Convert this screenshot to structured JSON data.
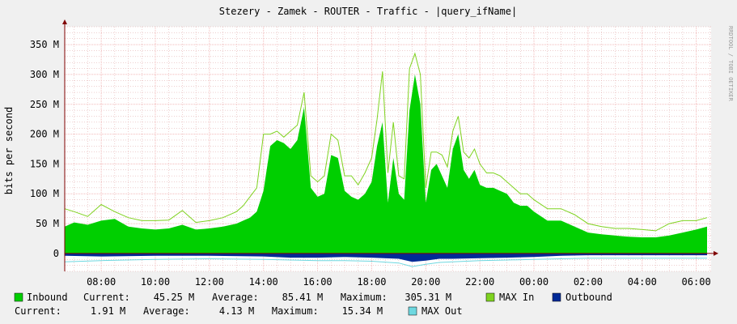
{
  "chart_data": {
    "type": "area",
    "title": "Stezery - Zamek - ROUTER - Traffic - |query_ifName|",
    "ylabel": "bits per second",
    "watermark": "RRDTOOL / TOBI OETIKER",
    "ylim": [
      -30,
      380
    ],
    "y_ticks": [
      {
        "value": 350,
        "label": "350 M"
      },
      {
        "value": 300,
        "label": "300 M"
      },
      {
        "value": 250,
        "label": "250 M"
      },
      {
        "value": 200,
        "label": "200 M"
      },
      {
        "value": 150,
        "label": "150 M"
      },
      {
        "value": 100,
        "label": "100 M"
      },
      {
        "value": 50,
        "label": "50 M"
      },
      {
        "value": 0,
        "label": "0"
      }
    ],
    "x_range": [
      6.65,
      30.55
    ],
    "x_ticks": [
      {
        "value": 8,
        "label": "08:00"
      },
      {
        "value": 10,
        "label": "10:00"
      },
      {
        "value": 12,
        "label": "12:00"
      },
      {
        "value": 14,
        "label": "14:00"
      },
      {
        "value": 16,
        "label": "16:00"
      },
      {
        "value": 18,
        "label": "18:00"
      },
      {
        "value": 20,
        "label": "20:00"
      },
      {
        "value": 22,
        "label": "22:00"
      },
      {
        "value": 24,
        "label": "00:00"
      },
      {
        "value": 26,
        "label": "02:00"
      },
      {
        "value": 28,
        "label": "04:00"
      },
      {
        "value": 30,
        "label": "06:00"
      }
    ],
    "grid": true,
    "colors": {
      "inbound": "#00cf00",
      "max_in": "#7fd320",
      "outbound": "#002a97",
      "max_out": "#6ed8e0",
      "grid_minor": "#dd9f9f",
      "grid_major": "#f3b9b9",
      "axis": "#800000",
      "plot_bg": "#ffffff",
      "frame_bg": "#f0f0f0"
    },
    "series": [
      {
        "name": "Inbound",
        "key": "inbound",
        "x": [
          6.65,
          7.0,
          7.5,
          8.0,
          8.5,
          9.0,
          9.5,
          10.0,
          10.5,
          11.0,
          11.5,
          12.0,
          12.5,
          13.0,
          13.25,
          13.5,
          13.75,
          14.0,
          14.25,
          14.5,
          14.75,
          15.0,
          15.25,
          15.5,
          15.75,
          16.0,
          16.25,
          16.5,
          16.75,
          17.0,
          17.25,
          17.5,
          17.75,
          18.0,
          18.2,
          18.4,
          18.6,
          18.8,
          19.0,
          19.2,
          19.4,
          19.6,
          19.8,
          20.0,
          20.2,
          20.4,
          20.6,
          20.8,
          21.0,
          21.2,
          21.4,
          21.6,
          21.8,
          22.0,
          22.25,
          22.5,
          22.75,
          23.0,
          23.25,
          23.5,
          23.75,
          24.0,
          24.5,
          25.0,
          25.5,
          26.0,
          26.5,
          27.0,
          27.5,
          28.0,
          28.5,
          29.0,
          29.5,
          30.0,
          30.4
        ],
        "values": [
          45,
          52,
          48,
          55,
          58,
          45,
          42,
          40,
          42,
          48,
          40,
          42,
          45,
          50,
          55,
          60,
          70,
          105,
          180,
          190,
          185,
          175,
          190,
          245,
          110,
          95,
          100,
          165,
          160,
          105,
          95,
          90,
          100,
          120,
          180,
          220,
          85,
          160,
          100,
          90,
          240,
          300,
          250,
          85,
          140,
          150,
          130,
          110,
          175,
          200,
          140,
          125,
          140,
          115,
          110,
          110,
          105,
          100,
          85,
          80,
          80,
          70,
          55,
          55,
          45,
          35,
          32,
          30,
          28,
          27,
          27,
          30,
          35,
          40,
          45
        ]
      },
      {
        "name": "MAX In",
        "key": "max_in",
        "x": [
          6.65,
          7.0,
          7.5,
          8.0,
          8.5,
          9.0,
          9.5,
          10.0,
          10.5,
          11.0,
          11.5,
          12.0,
          12.5,
          13.0,
          13.25,
          13.5,
          13.75,
          14.0,
          14.25,
          14.5,
          14.75,
          15.0,
          15.25,
          15.5,
          15.75,
          16.0,
          16.25,
          16.5,
          16.75,
          17.0,
          17.25,
          17.5,
          17.75,
          18.0,
          18.2,
          18.4,
          18.6,
          18.8,
          19.0,
          19.2,
          19.4,
          19.6,
          19.8,
          20.0,
          20.2,
          20.4,
          20.6,
          20.8,
          21.0,
          21.2,
          21.4,
          21.6,
          21.8,
          22.0,
          22.25,
          22.5,
          22.75,
          23.0,
          23.25,
          23.5,
          23.75,
          24.0,
          24.5,
          25.0,
          25.5,
          26.0,
          26.5,
          27.0,
          27.5,
          28.0,
          28.5,
          29.0,
          29.5,
          30.0,
          30.4
        ],
        "values": [
          75,
          70,
          62,
          82,
          70,
          60,
          55,
          55,
          56,
          72,
          52,
          55,
          60,
          70,
          80,
          95,
          110,
          200,
          200,
          205,
          195,
          205,
          215,
          270,
          130,
          120,
          130,
          200,
          190,
          130,
          130,
          115,
          135,
          160,
          225,
          305,
          135,
          220,
          130,
          125,
          310,
          335,
          300,
          110,
          170,
          170,
          165,
          145,
          205,
          230,
          170,
          160,
          175,
          150,
          135,
          135,
          130,
          120,
          110,
          100,
          100,
          90,
          75,
          75,
          65,
          50,
          45,
          42,
          42,
          40,
          38,
          50,
          55,
          55,
          60
        ]
      },
      {
        "name": "Outbound",
        "key": "outbound",
        "x": [
          6.65,
          8.0,
          10.0,
          12.0,
          14.0,
          15.0,
          16.0,
          17.0,
          18.0,
          19.0,
          19.5,
          20.0,
          20.5,
          21.0,
          22.0,
          23.0,
          24.0,
          25.0,
          26.0,
          28.0,
          30.4
        ],
        "values": [
          -4,
          -5,
          -4,
          -4,
          -5,
          -7,
          -7,
          -6,
          -7,
          -9,
          -14,
          -12,
          -9,
          -9,
          -8,
          -7,
          -6,
          -4,
          -3,
          -3,
          -3
        ]
      },
      {
        "name": "MAX Out",
        "key": "max_out",
        "x": [
          6.65,
          8.0,
          10.0,
          12.0,
          14.0,
          15.0,
          16.0,
          17.0,
          18.0,
          19.0,
          19.5,
          20.0,
          20.5,
          21.0,
          22.0,
          23.0,
          24.0,
          25.0,
          26.0,
          28.0,
          30.4
        ],
        "values": [
          -14,
          -12,
          -10,
          -9,
          -10,
          -11,
          -12,
          -12,
          -13,
          -16,
          -22,
          -18,
          -15,
          -14,
          -12,
          -11,
          -10,
          -9,
          -8,
          -8,
          -8
        ]
      }
    ],
    "legend": {
      "inbound_label": "Inbound",
      "inbound_stats": "Current:    45.25 M   Average:    85.41 M   Maximum:   305.31 M",
      "max_in_label": "MAX In",
      "outbound_label": "Outbound",
      "outbound_stats": "Current:     1.91 M   Average:     4.13 M   Maximum:    15.34 M",
      "max_out_label": "MAX Out"
    }
  }
}
